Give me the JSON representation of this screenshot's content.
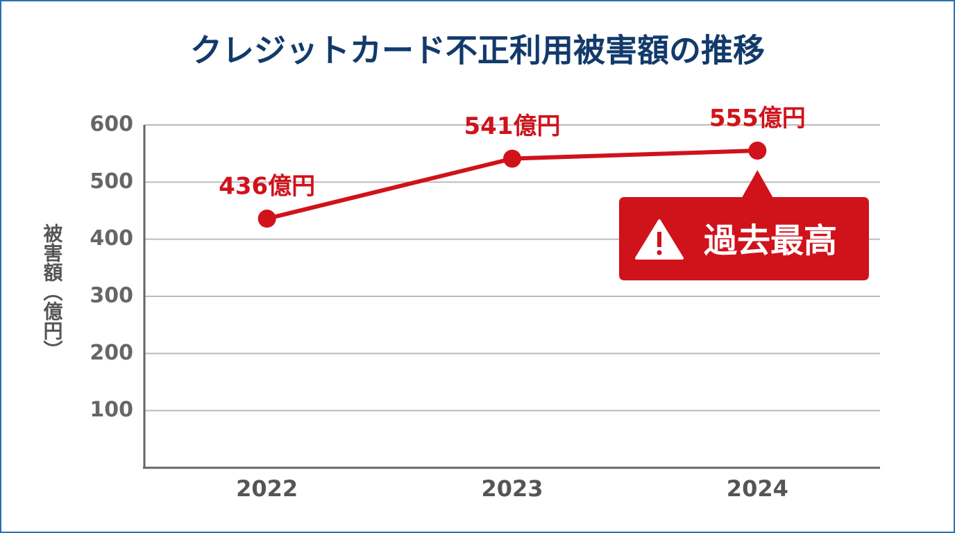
{
  "chart_data": {
    "type": "line",
    "title": "クレジットカード不正利用被害額の推移",
    "y_label": "被害額（億円）",
    "categories": [
      "2022",
      "2023",
      "2024"
    ],
    "values": [
      436,
      541,
      555
    ],
    "value_labels": [
      "436億円",
      "541億円",
      "555億円"
    ],
    "color": "#d0121b",
    "annotation": "過去最高",
    "ylim": [
      0,
      600
    ],
    "yticks": [
      100,
      200,
      300,
      400,
      500,
      600
    ],
    "grid": true
  }
}
